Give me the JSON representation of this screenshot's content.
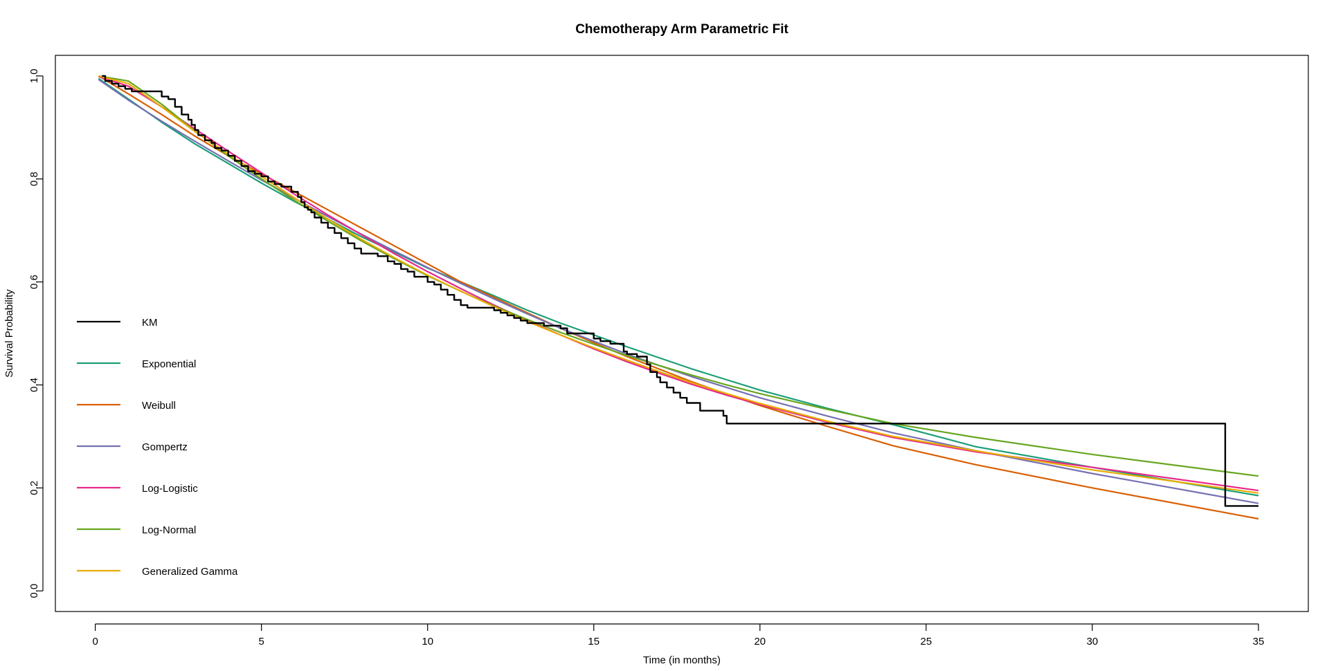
{
  "chart_data": {
    "type": "line",
    "title": "Chemotherapy Arm Parametric Fit",
    "xlabel": "Time (in months)",
    "ylabel": "Survival Probability",
    "xlim": [
      -1.2,
      36.5
    ],
    "ylim": [
      -0.04,
      1.04
    ],
    "x_ticks": [
      0,
      5,
      10,
      15,
      20,
      25,
      30,
      35
    ],
    "y_ticks": [
      "0.0",
      "0.2",
      "0.4",
      "0.6",
      "0.8",
      "1.0"
    ],
    "grid": false,
    "legend_position": "left",
    "series": [
      {
        "name": "KM",
        "color": "#000000",
        "step": true,
        "x": [
          0.2,
          0.3,
          0.5,
          0.7,
          0.9,
          1.1,
          1.3,
          2.0,
          2.2,
          2.4,
          2.6,
          2.8,
          2.9,
          3.0,
          3.1,
          3.3,
          3.5,
          3.6,
          3.8,
          4.0,
          4.2,
          4.4,
          4.6,
          4.8,
          5.0,
          5.2,
          5.4,
          5.6,
          5.9,
          6.1,
          6.2,
          6.3,
          6.4,
          6.5,
          6.6,
          6.8,
          7.0,
          7.2,
          7.4,
          7.6,
          7.8,
          8.0,
          8.5,
          8.8,
          9.0,
          9.2,
          9.4,
          9.6,
          10.0,
          10.2,
          10.4,
          10.6,
          10.8,
          11.0,
          11.2,
          12.0,
          12.2,
          12.4,
          12.6,
          12.8,
          13.0,
          13.5,
          14.0,
          14.2,
          15.0,
          15.2,
          15.5,
          15.9,
          16.0,
          16.3,
          16.6,
          16.7,
          16.9,
          17.0,
          17.2,
          17.4,
          17.6,
          17.8,
          18.2,
          18.9,
          19.0,
          34.0,
          35.0
        ],
        "y": [
          1.0,
          0.99,
          0.985,
          0.98,
          0.975,
          0.97,
          0.97,
          0.96,
          0.955,
          0.94,
          0.925,
          0.915,
          0.905,
          0.895,
          0.885,
          0.875,
          0.87,
          0.86,
          0.855,
          0.845,
          0.835,
          0.825,
          0.815,
          0.81,
          0.805,
          0.795,
          0.79,
          0.785,
          0.775,
          0.765,
          0.755,
          0.745,
          0.74,
          0.735,
          0.725,
          0.715,
          0.705,
          0.695,
          0.685,
          0.675,
          0.665,
          0.655,
          0.65,
          0.64,
          0.635,
          0.625,
          0.62,
          0.61,
          0.6,
          0.595,
          0.585,
          0.575,
          0.565,
          0.555,
          0.55,
          0.545,
          0.54,
          0.535,
          0.53,
          0.525,
          0.52,
          0.515,
          0.51,
          0.5,
          0.49,
          0.485,
          0.48,
          0.465,
          0.46,
          0.455,
          0.44,
          0.425,
          0.415,
          0.405,
          0.395,
          0.385,
          0.375,
          0.365,
          0.35,
          0.34,
          0.325,
          0.165,
          0.165
        ]
      },
      {
        "name": "Exponential",
        "color": "#1b9e77",
        "x": [
          0.1,
          1,
          2,
          3,
          4,
          5,
          6,
          7,
          8,
          9,
          10,
          11,
          12,
          13,
          14,
          15,
          16,
          17,
          18,
          19,
          20,
          22,
          24,
          26.5,
          30,
          35
        ],
        "y": [
          0.995,
          0.955,
          0.91,
          0.868,
          0.83,
          0.792,
          0.756,
          0.722,
          0.688,
          0.658,
          0.627,
          0.6,
          0.573,
          0.545,
          0.52,
          0.497,
          0.474,
          0.452,
          0.43,
          0.41,
          0.39,
          0.355,
          0.323,
          0.28,
          0.24,
          0.185
        ]
      },
      {
        "name": "Weibull",
        "color": "#d95f02",
        "x": [
          0.1,
          1,
          2,
          3,
          4,
          5,
          6,
          7,
          8,
          9,
          10,
          11,
          12,
          13,
          14,
          15,
          16,
          17,
          18,
          19,
          20,
          22,
          24,
          26.5,
          30,
          35
        ],
        "y": [
          1.0,
          0.965,
          0.925,
          0.883,
          0.845,
          0.81,
          0.775,
          0.74,
          0.705,
          0.67,
          0.635,
          0.6,
          0.57,
          0.54,
          0.51,
          0.482,
          0.455,
          0.43,
          0.405,
          0.382,
          0.36,
          0.32,
          0.282,
          0.245,
          0.2,
          0.14
        ]
      },
      {
        "name": "Gompertz",
        "color": "#7570b3",
        "x": [
          0.1,
          1,
          2,
          3,
          4,
          5,
          6,
          7,
          8,
          9,
          10,
          11,
          12,
          13,
          14,
          15,
          16,
          17,
          18,
          19,
          20,
          22,
          24,
          26.5,
          30,
          35
        ],
        "y": [
          0.993,
          0.953,
          0.912,
          0.873,
          0.835,
          0.798,
          0.762,
          0.727,
          0.693,
          0.66,
          0.628,
          0.597,
          0.567,
          0.538,
          0.51,
          0.485,
          0.46,
          0.437,
          0.415,
          0.395,
          0.375,
          0.34,
          0.307,
          0.272,
          0.228,
          0.17
        ]
      },
      {
        "name": "Log-Logistic",
        "color": "#e7298a",
        "x": [
          0.1,
          1,
          2,
          3,
          4,
          5,
          6,
          7,
          8,
          9,
          10,
          11,
          12,
          13,
          14,
          15,
          16,
          17,
          18,
          19,
          20,
          22,
          24,
          26.5,
          30,
          35
        ],
        "y": [
          0.999,
          0.98,
          0.94,
          0.897,
          0.854,
          0.812,
          0.77,
          0.73,
          0.692,
          0.655,
          0.62,
          0.587,
          0.555,
          0.525,
          0.497,
          0.47,
          0.445,
          0.422,
          0.4,
          0.38,
          0.362,
          0.328,
          0.298,
          0.27,
          0.24,
          0.195
        ]
      },
      {
        "name": "Log-Normal",
        "color": "#66a61e",
        "x": [
          0.1,
          1,
          2,
          3,
          4,
          5,
          6,
          7,
          8,
          9,
          10,
          11,
          12,
          13,
          14,
          15,
          16,
          17,
          18,
          19,
          20,
          22,
          24,
          26.5,
          30,
          35
        ],
        "y": [
          1.0,
          0.99,
          0.945,
          0.893,
          0.845,
          0.8,
          0.758,
          0.718,
          0.68,
          0.645,
          0.612,
          0.582,
          0.553,
          0.527,
          0.502,
          0.479,
          0.457,
          0.437,
          0.418,
          0.4,
          0.383,
          0.353,
          0.325,
          0.298,
          0.265,
          0.223
        ]
      },
      {
        "name": "Generalized Gamma",
        "color": "#e6ab02",
        "x": [
          0.1,
          1,
          2,
          3,
          4,
          5,
          6,
          7,
          8,
          9,
          10,
          11,
          12,
          13,
          14,
          15,
          16,
          17,
          18,
          19,
          20,
          22,
          24,
          26.5,
          30,
          35
        ],
        "y": [
          1.0,
          0.985,
          0.94,
          0.892,
          0.848,
          0.805,
          0.763,
          0.722,
          0.683,
          0.647,
          0.613,
          0.582,
          0.552,
          0.523,
          0.497,
          0.472,
          0.448,
          0.425,
          0.403,
          0.383,
          0.364,
          0.33,
          0.3,
          0.272,
          0.235,
          0.19
        ]
      }
    ]
  }
}
